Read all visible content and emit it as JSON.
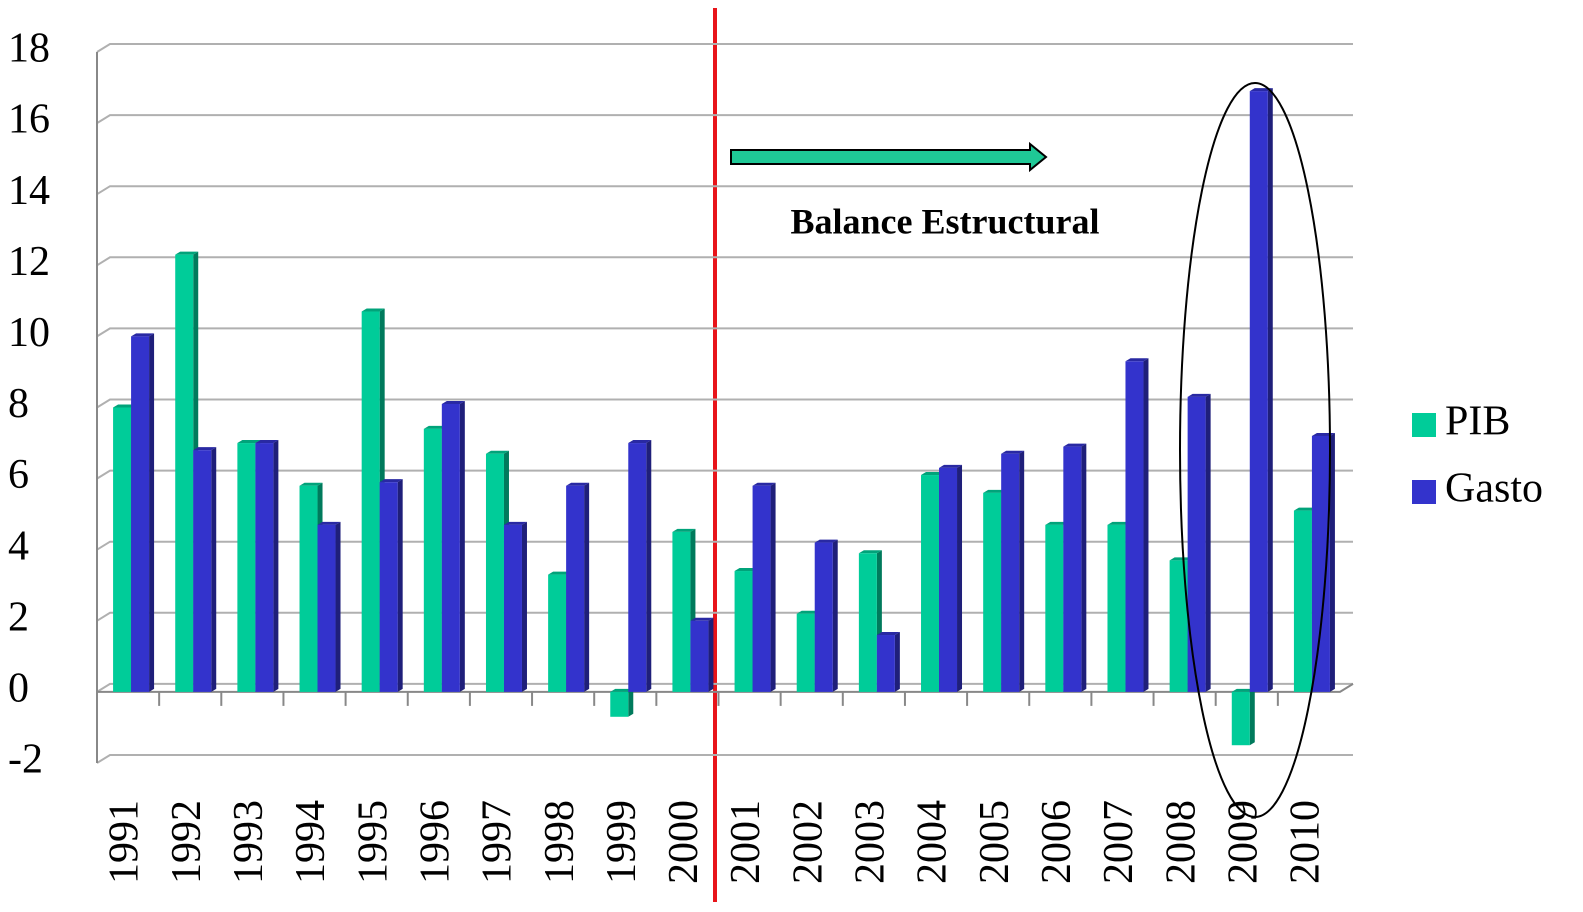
{
  "chart_data": {
    "type": "bar",
    "annotations": [
      "Balance Estructural"
    ],
    "categories": [
      "1991",
      "1992",
      "1993",
      "1994",
      "1995",
      "1996",
      "1997",
      "1998",
      "1999",
      "2000",
      "2001",
      "2002",
      "2003",
      "2004",
      "2005",
      "2006",
      "2007",
      "2008",
      "2009",
      "2010"
    ],
    "series": [
      {
        "name": "PIB",
        "color": "#00cc99",
        "values": [
          8.0,
          12.3,
          7.0,
          5.8,
          10.7,
          7.4,
          6.7,
          3.3,
          -0.7,
          4.5,
          3.4,
          2.2,
          3.9,
          6.1,
          5.6,
          4.7,
          4.7,
          3.7,
          -1.5,
          5.1
        ]
      },
      {
        "name": "Gasto",
        "color": "#3333cc",
        "values": [
          10.0,
          6.8,
          7.0,
          4.7,
          5.9,
          8.1,
          4.7,
          5.8,
          7.0,
          2.0,
          5.8,
          4.2,
          1.6,
          6.3,
          6.7,
          6.9,
          9.3,
          8.3,
          16.9,
          7.2
        ]
      }
    ],
    "ylim": [
      -2,
      18
    ],
    "yticks": [
      -2,
      0,
      2,
      4,
      6,
      8,
      10,
      12,
      14,
      16,
      18
    ],
    "grid": true,
    "legend": "right"
  }
}
